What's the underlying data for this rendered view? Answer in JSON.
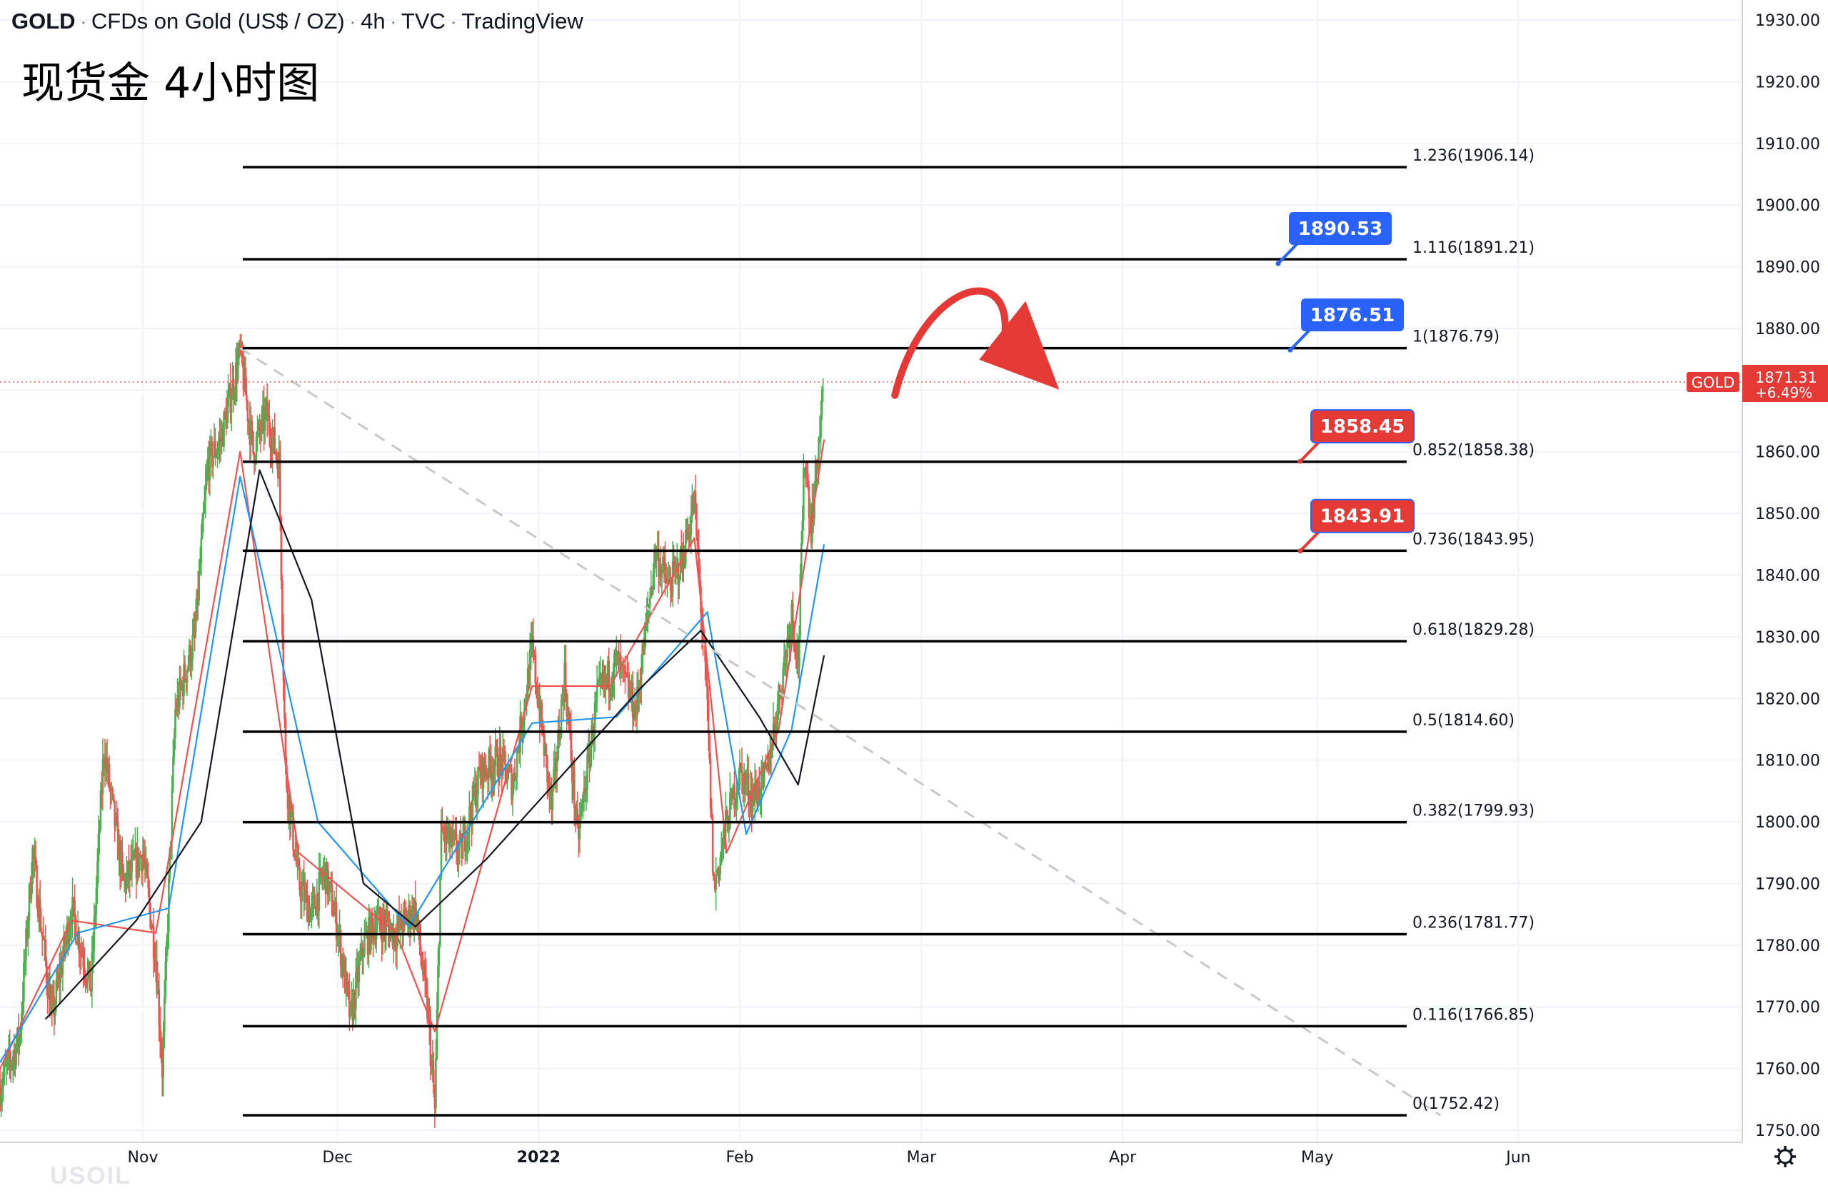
{
  "header": {
    "symbol": "GOLD",
    "description": "CFDs on Gold (US$ / OZ)",
    "interval": "4h",
    "exchange": "TVC",
    "source": "TradingView"
  },
  "subtitle": "现货金 4小时图",
  "watermark": "USOIL",
  "price_axis": {
    "ticks": [
      "1930.00",
      "1920.00",
      "1910.00",
      "1900.00",
      "1890.00",
      "1880.00",
      "1870.00",
      "1860.00",
      "1850.00",
      "1840.00",
      "1830.00",
      "1820.00",
      "1810.00",
      "1800.00",
      "1790.00",
      "1780.00",
      "1770.00",
      "1760.00",
      "1750.00"
    ],
    "current_price_label": "GOLD",
    "current_price": "1871.31",
    "current_change": "+6.49%"
  },
  "time_axis": {
    "ticks": [
      "Nov",
      "Dec",
      "2022",
      "Feb",
      "Mar",
      "Apr",
      "May",
      "Jun"
    ]
  },
  "colors": {
    "up": "#4caf50",
    "down": "#ef5350",
    "blue_flag": "#2962ff",
    "red_flag": "#e53935",
    "fib_line": "#000000",
    "price_line": "#ef5350",
    "trend_line": "#c8c8c8",
    "ma_fast": "#ef5350",
    "ma_mid": "#2196f3",
    "ma_slow": "#131722"
  },
  "chart_data": {
    "type": "candlestick",
    "symbol": "GOLD",
    "interval": "4h",
    "ylim": [
      1748,
      1933
    ],
    "x_range": [
      "2021-10-10",
      "2022-06-10"
    ],
    "current_price": 1871.31,
    "fib_levels": [
      {
        "label": "1.236(1906.14)",
        "ratio": 1.236,
        "price": 1906.14
      },
      {
        "label": "1.116(1891.21)",
        "ratio": 1.116,
        "price": 1891.21
      },
      {
        "label": "1(1876.79)",
        "ratio": 1,
        "price": 1876.79
      },
      {
        "label": "0.852(1858.38)",
        "ratio": 0.852,
        "price": 1858.38
      },
      {
        "label": "0.736(1843.95)",
        "ratio": 0.736,
        "price": 1843.95
      },
      {
        "label": "0.618(1829.28)",
        "ratio": 0.618,
        "price": 1829.28
      },
      {
        "label": "0.5(1814.60)",
        "ratio": 0.5,
        "price": 1814.6
      },
      {
        "label": "0.382(1799.93)",
        "ratio": 0.382,
        "price": 1799.93
      },
      {
        "label": "0.236(1781.77)",
        "ratio": 0.236,
        "price": 1781.77
      },
      {
        "label": "0.116(1766.85)",
        "ratio": 0.116,
        "price": 1766.85
      },
      {
        "label": "0(1752.42)",
        "ratio": 0,
        "price": 1752.42
      }
    ],
    "price_flags": [
      {
        "label": "1890.53",
        "color": "blue",
        "price": 1890.53
      },
      {
        "label": "1876.51",
        "color": "blue",
        "price": 1876.51
      },
      {
        "label": "1858.45",
        "color": "red",
        "price": 1858.45
      },
      {
        "label": "1843.91",
        "color": "red",
        "price": 1843.91
      }
    ],
    "trend_line": {
      "from": {
        "date": "2021-11-16",
        "price": 1876.8
      },
      "to": {
        "date": "2022-05-20",
        "price": 1752.4
      },
      "style": "dashed"
    },
    "projection_arrow": {
      "from": {
        "date": "2022-02-26",
        "price": 1874
      },
      "to": {
        "date": "2022-03-22",
        "price": 1874
      },
      "direction": "down"
    },
    "price_path": [
      [
        "2021-10-10",
        1757
      ],
      [
        "2021-10-13",
        1765
      ],
      [
        "2021-10-15",
        1795
      ],
      [
        "2021-10-18",
        1768
      ],
      [
        "2021-10-21",
        1786
      ],
      [
        "2021-10-24",
        1773
      ],
      [
        "2021-10-26",
        1812
      ],
      [
        "2021-10-29",
        1790
      ],
      [
        "2021-11-01",
        1795
      ],
      [
        "2021-11-03",
        1778
      ],
      [
        "2021-11-04",
        1760
      ],
      [
        "2021-11-06",
        1818
      ],
      [
        "2021-11-09",
        1830
      ],
      [
        "2021-11-11",
        1858
      ],
      [
        "2021-11-13",
        1862
      ],
      [
        "2021-11-16",
        1876
      ],
      [
        "2021-11-18",
        1860
      ],
      [
        "2021-11-20",
        1866
      ],
      [
        "2021-11-22",
        1858
      ],
      [
        "2021-11-23",
        1808
      ],
      [
        "2021-11-25",
        1790
      ],
      [
        "2021-11-27",
        1785
      ],
      [
        "2021-11-29",
        1792
      ],
      [
        "2021-12-01",
        1783
      ],
      [
        "2021-12-03",
        1768
      ],
      [
        "2021-12-05",
        1780
      ],
      [
        "2021-12-07",
        1784
      ],
      [
        "2021-12-10",
        1782
      ],
      [
        "2021-12-13",
        1786
      ],
      [
        "2021-12-15",
        1768
      ],
      [
        "2021-12-16",
        1753
      ],
      [
        "2021-12-17",
        1798
      ],
      [
        "2021-12-20",
        1795
      ],
      [
        "2021-12-23",
        1808
      ],
      [
        "2021-12-26",
        1810
      ],
      [
        "2021-12-28",
        1806
      ],
      [
        "2021-12-31",
        1828
      ],
      [
        "2022-01-03",
        1802
      ],
      [
        "2022-01-05",
        1824
      ],
      [
        "2022-01-07",
        1797
      ],
      [
        "2022-01-10",
        1820
      ],
      [
        "2022-01-13",
        1826
      ],
      [
        "2022-01-16",
        1818
      ],
      [
        "2022-01-19",
        1844
      ],
      [
        "2022-01-21",
        1838
      ],
      [
        "2022-01-23",
        1842
      ],
      [
        "2022-01-25",
        1852
      ],
      [
        "2022-01-27",
        1818
      ],
      [
        "2022-01-28",
        1789
      ],
      [
        "2022-01-30",
        1800
      ],
      [
        "2022-02-01",
        1808
      ],
      [
        "2022-02-03",
        1804
      ],
      [
        "2022-02-05",
        1807
      ],
      [
        "2022-02-07",
        1820
      ],
      [
        "2022-02-09",
        1834
      ],
      [
        "2022-02-10",
        1826
      ],
      [
        "2022-02-11",
        1860
      ],
      [
        "2022-02-12",
        1848
      ],
      [
        "2022-02-14",
        1871.31
      ]
    ],
    "moving_averages": [
      {
        "color": "#ef5350",
        "values": [
          [
            "2021-10-10",
            1760
          ],
          [
            "2021-10-21",
            1784
          ],
          [
            "2021-11-03",
            1782
          ],
          [
            "2021-11-16",
            1860
          ],
          [
            "2021-11-25",
            1795
          ],
          [
            "2021-12-10",
            1782
          ],
          [
            "2021-12-16",
            1766
          ],
          [
            "2021-12-31",
            1822
          ],
          [
            "2022-01-12",
            1822
          ],
          [
            "2022-01-25",
            1846
          ],
          [
            "2022-01-30",
            1795
          ],
          [
            "2022-02-07",
            1815
          ],
          [
            "2022-02-14",
            1862
          ]
        ]
      },
      {
        "color": "#2196f3",
        "values": [
          [
            "2021-10-10",
            1761
          ],
          [
            "2021-10-22",
            1782
          ],
          [
            "2021-11-05",
            1786
          ],
          [
            "2021-11-16",
            1856
          ],
          [
            "2021-11-28",
            1800
          ],
          [
            "2021-12-12",
            1783
          ],
          [
            "2021-12-31",
            1816
          ],
          [
            "2022-01-13",
            1817
          ],
          [
            "2022-01-27",
            1834
          ],
          [
            "2022-02-02",
            1798
          ],
          [
            "2022-02-09",
            1815
          ],
          [
            "2022-02-14",
            1845
          ]
        ]
      },
      {
        "color": "#131722",
        "values": [
          [
            "2021-10-17",
            1768
          ],
          [
            "2021-10-31",
            1784
          ],
          [
            "2021-11-10",
            1800
          ],
          [
            "2021-11-19",
            1857
          ],
          [
            "2021-11-27",
            1836
          ],
          [
            "2021-12-05",
            1790
          ],
          [
            "2021-12-13",
            1783
          ],
          [
            "2021-12-24",
            1794
          ],
          [
            "2022-01-05",
            1808
          ],
          [
            "2022-01-17",
            1822
          ],
          [
            "2022-01-26",
            1831
          ],
          [
            "2022-02-04",
            1817
          ],
          [
            "2022-02-10",
            1806
          ],
          [
            "2022-02-14",
            1827
          ]
        ]
      }
    ]
  }
}
